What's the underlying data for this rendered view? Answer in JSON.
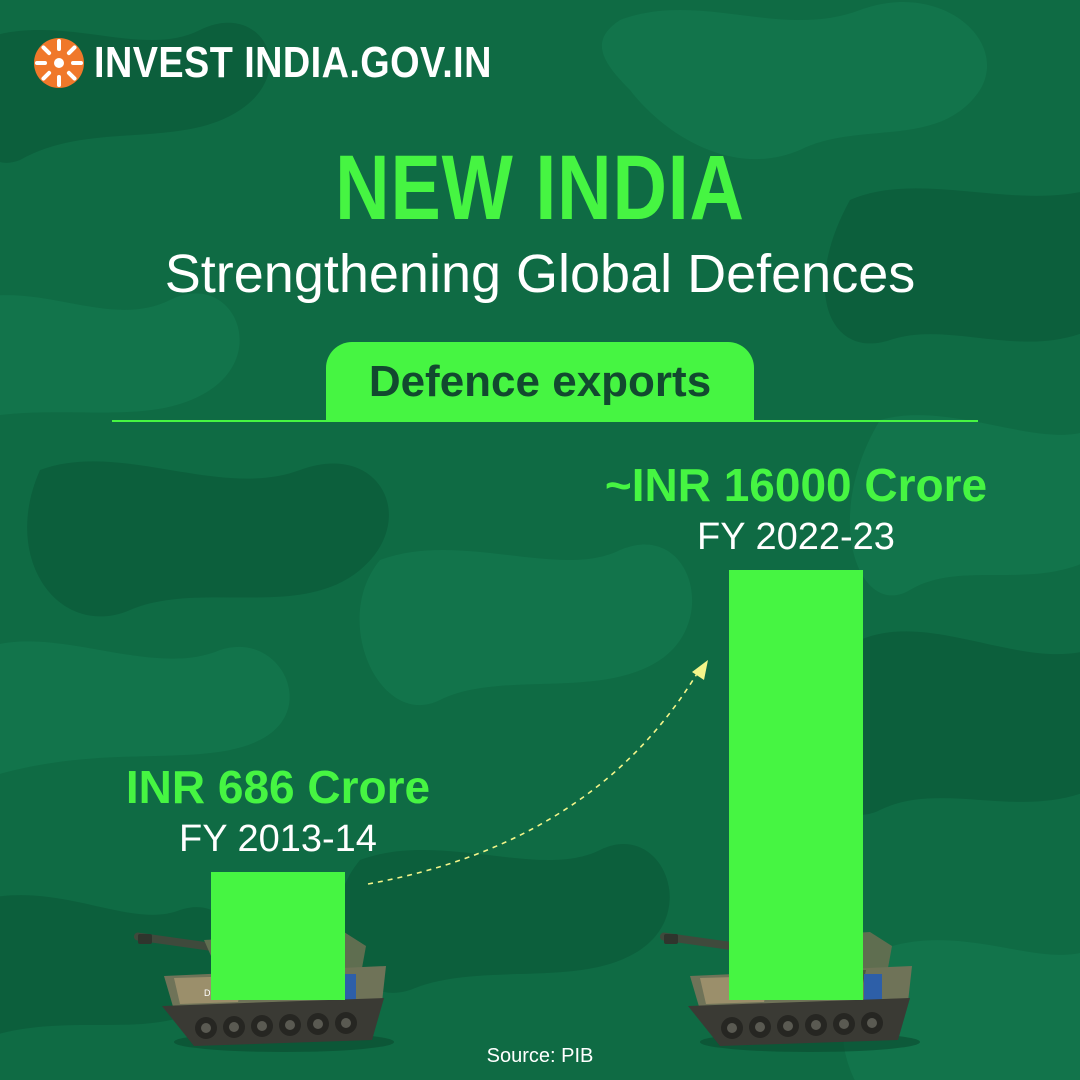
{
  "brand": {
    "logo_text": "INVEST INDIA.GOV.IN",
    "logo_icon": "invest-india-sun-icon"
  },
  "header": {
    "title": "NEW INDIA",
    "subtitle": "Strengthening Global Defences",
    "tag": "Defence exports"
  },
  "colors": {
    "background": "#0f6b44",
    "accent": "#46f542",
    "text": "#ffffff",
    "arrow": "#f4f58a"
  },
  "chart_data": {
    "type": "bar",
    "categories": [
      "FY 2013-14",
      "FY 2022-23"
    ],
    "values": [
      686,
      16000
    ],
    "value_labels": [
      "INR 686 Crore",
      "~INR 16000 Crore"
    ],
    "unit": "INR Crore",
    "grid": false,
    "annotation": "dashed growth arrow from first bar to second bar"
  },
  "footer": {
    "source": "Source: PIB"
  }
}
